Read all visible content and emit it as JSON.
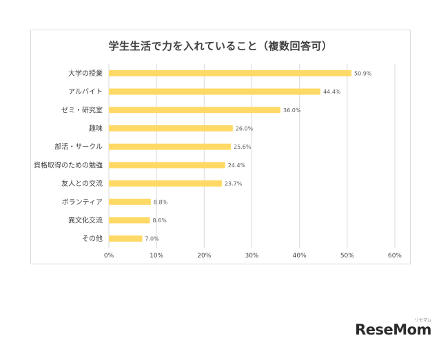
{
  "chart_data": {
    "type": "bar",
    "orientation": "horizontal",
    "title": "学生生活で力を入れていること（複数回答可）",
    "categories": [
      "大学の授業",
      "アルバイト",
      "ゼミ・研究室",
      "趣味",
      "部活・サークル",
      "資格取得のための勉強",
      "友人との交流",
      "ボランティア",
      "異文化交流",
      "その他"
    ],
    "values": [
      50.9,
      44.4,
      36.0,
      26.0,
      25.6,
      24.4,
      23.7,
      8.8,
      8.6,
      7.0
    ],
    "data_labels": [
      "50.9%",
      "44.4%",
      "36.0%",
      "26.0%",
      "25.6%",
      "24.4%",
      "23.7%",
      "8.8%",
      "8.6%",
      "7.0%"
    ],
    "x_ticks": [
      "0%",
      "10%",
      "20%",
      "30%",
      "40%",
      "50%",
      "60%"
    ],
    "xlim": [
      0,
      60
    ],
    "grid": "vertical",
    "bar_color": "#FFD966",
    "grid_color": "#d9d9d9",
    "text_color": "#404040"
  },
  "logo": {
    "main": "ReseMom",
    "ruby": "リセマム"
  }
}
